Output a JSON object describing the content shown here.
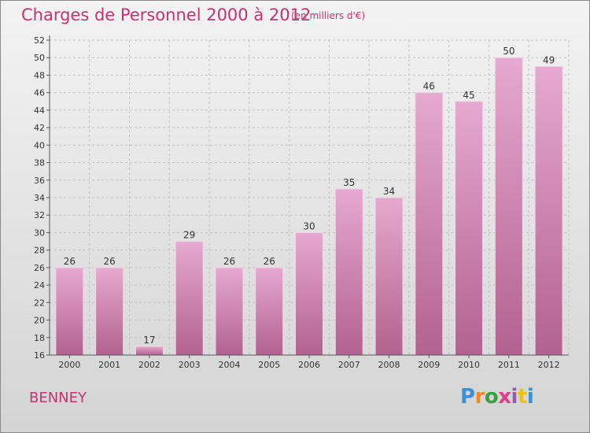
{
  "header": {
    "title": "Charges de Personnel 2000 à 2012",
    "subtitle": "(en milliers d'€)"
  },
  "footer": {
    "commune": "BENNEY",
    "logo_text": "Proxiti",
    "logo_colors": [
      "#3a8fd8",
      "#f08a1c",
      "#3aa03a",
      "#e83a8a",
      "#9b59b6",
      "#f0c018",
      "#3a8fd8"
    ]
  },
  "chart_data": {
    "type": "bar",
    "categories": [
      "2000",
      "2001",
      "2002",
      "2003",
      "2004",
      "2005",
      "2006",
      "2007",
      "2008",
      "2009",
      "2010",
      "2011",
      "2012"
    ],
    "values": [
      26,
      26,
      17,
      29,
      26,
      26,
      30,
      35,
      34,
      46,
      45,
      50,
      49
    ],
    "ylim": [
      16,
      52
    ],
    "ytick_step": 2,
    "grid": true,
    "bar_color": "#d98ab4"
  }
}
